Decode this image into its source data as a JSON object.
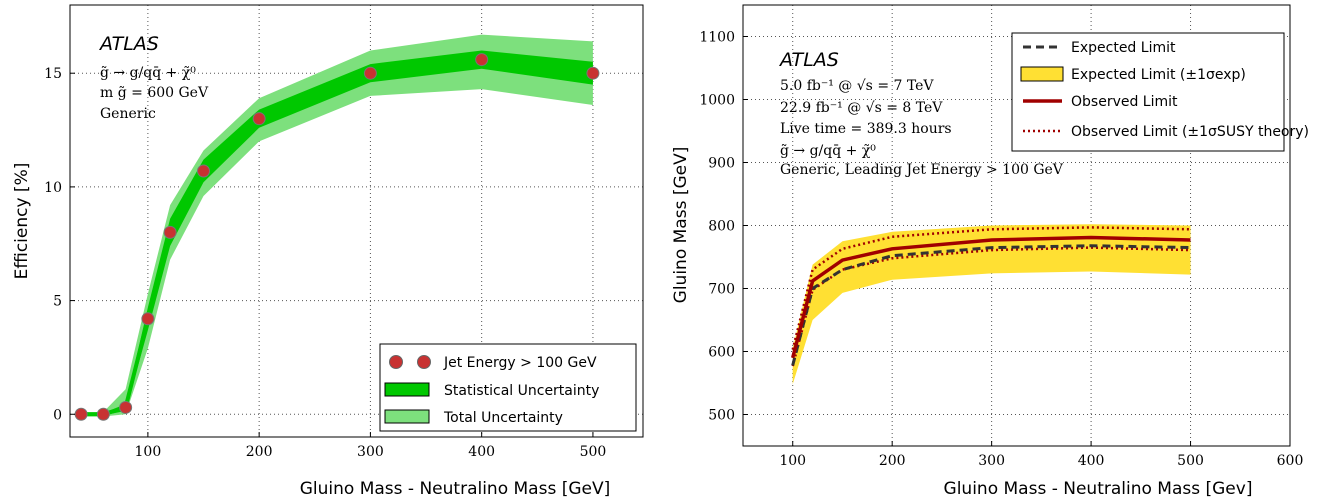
{
  "chart_data": [
    {
      "type": "line",
      "xlabel": "Gluino Mass - Neutralino Mass [GeV]",
      "ylabel": "Efficiency [%]",
      "xlim": [
        30,
        545
      ],
      "ylim": [
        -1,
        18
      ],
      "xticks": [
        "100",
        "200",
        "300",
        "400",
        "500"
      ],
      "xtick_values": [
        100,
        200,
        300,
        400,
        500
      ],
      "yticks": [
        "0",
        "5",
        "10",
        "15"
      ],
      "ytick_values": [
        0,
        5,
        10,
        15
      ],
      "grid": true,
      "legend_position": "bottom-right",
      "annotations": {
        "experiment": "ATLAS",
        "lines": [
          "g̃ → g/qq̄ + χ̃⁰",
          "m g̃ = 600 GeV",
          "Generic"
        ]
      },
      "x": [
        40,
        60,
        80,
        100,
        120,
        150,
        200,
        300,
        400,
        500
      ],
      "series": [
        {
          "name": "Jet Energy > 100 GeV",
          "kind": "points",
          "values": [
            0,
            0,
            0.3,
            4.2,
            8.0,
            10.7,
            13.0,
            15.0,
            15.6,
            15.0
          ]
        },
        {
          "name": "Statistical Uncertainty",
          "kind": "band",
          "lower": [
            -0.05,
            -0.05,
            0.15,
            3.7,
            7.4,
            10.2,
            12.6,
            14.6,
            15.2,
            14.5
          ],
          "upper": [
            0.05,
            0.05,
            0.45,
            4.7,
            8.6,
            11.2,
            13.4,
            15.4,
            16.0,
            15.5
          ]
        },
        {
          "name": "Total Uncertainty",
          "kind": "band",
          "lower": [
            -0.1,
            -0.1,
            0.0,
            2.9,
            6.8,
            9.6,
            12.0,
            14.0,
            14.3,
            13.6
          ],
          "upper": [
            0.1,
            0.1,
            1.1,
            5.3,
            9.2,
            11.6,
            13.9,
            16.0,
            16.7,
            16.4
          ]
        }
      ]
    },
    {
      "type": "line",
      "xlabel": "Gluino Mass - Neutralino Mass [Gev]",
      "ylabel": "Gluino Mass [GeV]",
      "xlim": [
        50,
        600
      ],
      "ylim": [
        450,
        1150
      ],
      "xticks": [
        "100",
        "200",
        "300",
        "400",
        "500",
        "600"
      ],
      "xtick_values": [
        100,
        200,
        300,
        400,
        500,
        600
      ],
      "yticks": [
        "500",
        "600",
        "700",
        "800",
        "900",
        "1000",
        "1100"
      ],
      "ytick_values": [
        500,
        600,
        700,
        800,
        900,
        1000,
        1100
      ],
      "grid": true,
      "legend_position": "top-right",
      "annotations": {
        "experiment": "ATLAS",
        "lines": [
          "5.0 fb⁻¹ @ √s = 7 TeV",
          "22.9 fb⁻¹ @ √s = 8 TeV",
          "Live time = 389.3 hours",
          "g̃ → g/qq̄ + χ̃⁰",
          "Generic, Leading Jet Energy > 100 GeV"
        ]
      },
      "x": [
        100,
        120,
        150,
        200,
        300,
        400,
        500
      ],
      "series": [
        {
          "name": "Expected Limit",
          "kind": "dashed-line",
          "values": [
            578,
            700,
            730,
            752,
            765,
            768,
            765
          ]
        },
        {
          "name": "Expected Limit (±1σexp)",
          "kind": "band",
          "lower": [
            548,
            650,
            693,
            714,
            724,
            727,
            722
          ],
          "upper": [
            605,
            738,
            775,
            790,
            800,
            802,
            800
          ]
        },
        {
          "name": "Observed Limit",
          "kind": "line",
          "values": [
            590,
            712,
            745,
            763,
            777,
            781,
            777
          ]
        },
        {
          "name": "Observed Limit (±1σSUSY theory)",
          "kind": "dotted-lines",
          "lower": [
            577,
            698,
            730,
            748,
            761,
            765,
            761
          ],
          "upper": [
            603,
            730,
            763,
            782,
            794,
            797,
            794
          ]
        }
      ]
    }
  ],
  "colors": {
    "stat_band": "#00c800",
    "total_band": "#7de07d",
    "point_fill": "#c83232",
    "yellow_band": "#ffe033",
    "observed": "#a00000",
    "expected": "#333333"
  }
}
